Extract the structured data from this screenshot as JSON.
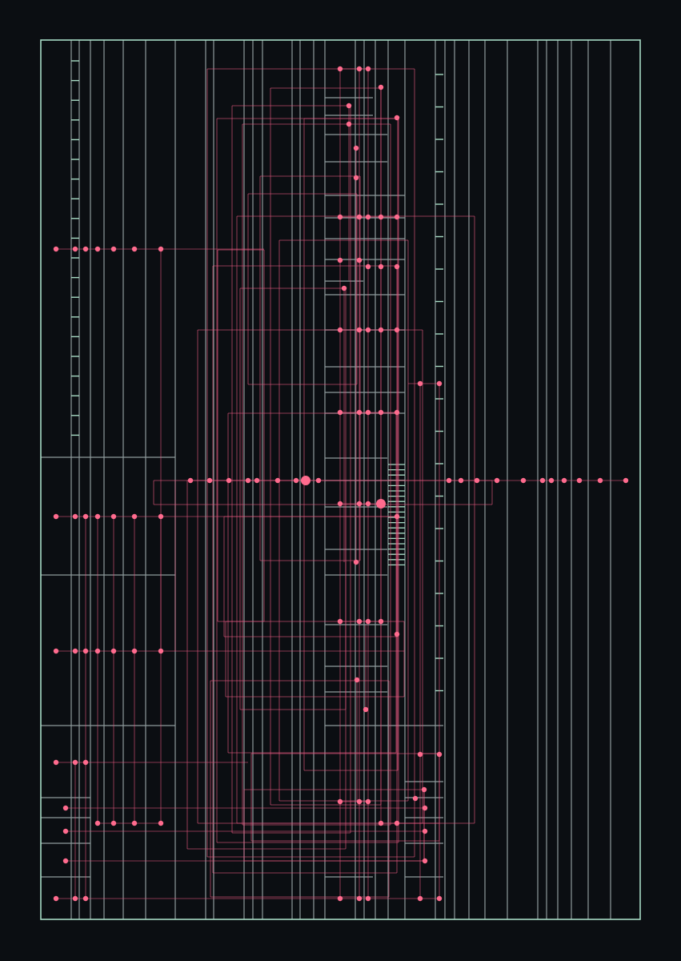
{
  "colors": {
    "background": "#0b0e12",
    "frame": "#a8dcc5",
    "grid_line": "#8e9a9c",
    "tick": "#a8dcc5",
    "connector": "#e5577f",
    "node": "#ff6b8e"
  },
  "artwork": {
    "kind": "abstract generative line composition",
    "text": ""
  }
}
